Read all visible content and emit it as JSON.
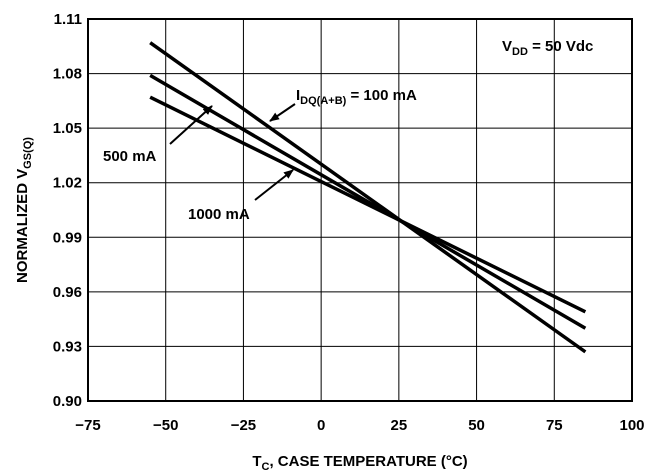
{
  "chart_data": {
    "type": "line",
    "xlabel": {
      "main": "T",
      "sub": "C",
      "rest": ", CASE TEMPERATURE (°C)"
    },
    "ylabel": {
      "main": "NORMALIZED V",
      "sub": "GS(Q)"
    },
    "xlim": [
      -75,
      100
    ],
    "ylim": [
      0.9,
      1.11
    ],
    "xticks": [
      -75,
      -50,
      -25,
      0,
      25,
      50,
      75,
      100
    ],
    "xtick_labels": [
      "−75",
      "−50",
      "−25",
      "0",
      "25",
      "50",
      "75",
      "100"
    ],
    "yticks": [
      0.9,
      0.93,
      0.96,
      0.99,
      1.02,
      1.05,
      1.08,
      1.11
    ],
    "ytick_labels": [
      "0.90",
      "0.93",
      "0.96",
      "0.99",
      "1.02",
      "1.05",
      "1.08",
      "1.11"
    ],
    "grid": true,
    "series": [
      {
        "x": [
          -55,
          85
        ],
        "y": [
          1.097,
          0.927
        ]
      },
      {
        "x": [
          -55,
          85
        ],
        "y": [
          1.079,
          0.94
        ]
      },
      {
        "x": [
          -55,
          85
        ],
        "y": [
          1.067,
          0.949
        ]
      }
    ],
    "annotations": {
      "vdd": {
        "main": "V",
        "sub": "DD",
        "rest": " = 50 Vdc"
      },
      "idq": {
        "main": "I",
        "sub": "DQ(A+B)",
        "rest": " = 100 mA"
      },
      "ma500": "500 mA",
      "ma1000": "1000 mA"
    },
    "line_color": "#000000",
    "grid_color": "#000000"
  }
}
